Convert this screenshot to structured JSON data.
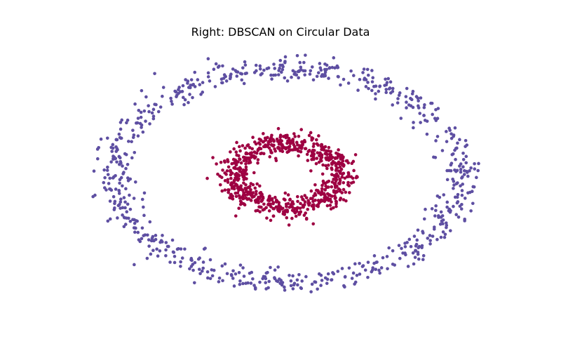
{
  "chart_data": {
    "type": "scatter",
    "title": "Right: DBSCAN on Circular Data",
    "xlabel": "",
    "ylabel": "",
    "axes_visible": false,
    "grid": false,
    "legend": "none",
    "xlim": [
      -1.25,
      1.25
    ],
    "ylim": [
      -1.25,
      1.25
    ],
    "clusters": [
      {
        "label": 0,
        "color": "#5e4fa2",
        "shape": "ring",
        "center": [
          0.0,
          0.0
        ],
        "radius": 1.0,
        "noise": 0.055,
        "n_points": 750
      },
      {
        "label": 1,
        "color": "#9e0142",
        "shape": "ring",
        "center": [
          0.0,
          0.0
        ],
        "radius": 0.3,
        "noise": 0.055,
        "n_points": 750
      }
    ]
  }
}
